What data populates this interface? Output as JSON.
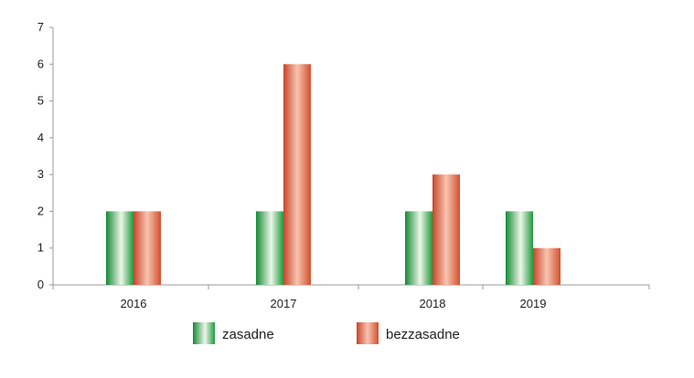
{
  "chart_data": {
    "type": "bar",
    "categories": [
      "2016",
      "2017",
      "2018",
      "2019"
    ],
    "series": [
      {
        "name": "zasadne",
        "values": [
          2,
          2,
          2,
          2
        ],
        "color": "#1e9a3c"
      },
      {
        "name": "bezzasadne",
        "values": [
          2,
          6,
          3,
          1
        ],
        "color": "#d2502c"
      }
    ],
    "ylim": [
      0,
      7
    ],
    "yticks": [
      "0",
      "1",
      "2",
      "3",
      "4",
      "5",
      "6",
      "7"
    ],
    "grid": false,
    "legend_position": "bottom"
  }
}
